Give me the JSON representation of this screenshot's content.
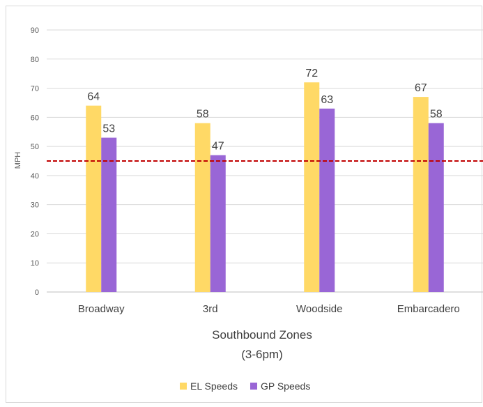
{
  "chart_data": {
    "type": "bar",
    "title": "",
    "categories": [
      "Broadway",
      "3rd",
      "Woodside",
      "Embarcadero"
    ],
    "series": [
      {
        "name": "EL Speeds",
        "values": [
          64,
          58,
          72,
          67
        ],
        "data_labels": [
          "64",
          "58",
          "72",
          "67"
        ],
        "color": "#FFD966"
      },
      {
        "name": "GP Speeds",
        "values": [
          53,
          47,
          63,
          58
        ],
        "data_labels": [
          "53",
          "47",
          "63",
          "58"
        ],
        "color": "#9966D6"
      }
    ],
    "xlabel": "Southbound Zones",
    "xlabel_sub": "(3-6pm)",
    "ylabel": "MPH",
    "ylim": [
      0,
      90
    ],
    "yticks": [
      0,
      10,
      20,
      30,
      40,
      50,
      60,
      70,
      80,
      90
    ],
    "reference_line": {
      "value": 45,
      "color": "#C00000",
      "style": "dashed"
    },
    "grid": true,
    "legend_position": "bottom"
  }
}
